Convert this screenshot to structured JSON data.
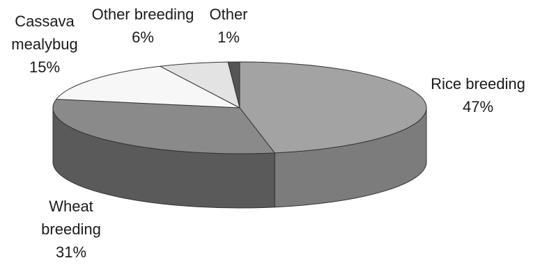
{
  "chart_data": {
    "type": "pie",
    "style": "3d",
    "slices": [
      {
        "label_lines": [
          "Rice breeding"
        ],
        "value": 47,
        "value_label": "47%",
        "color": "#a3a3a3",
        "side_color": "#7c7c7c"
      },
      {
        "label_lines": [
          "Wheat",
          "breeding"
        ],
        "value": 31,
        "value_label": "31%",
        "color": "#8a8a8a",
        "side_color": "#5a5a5a"
      },
      {
        "label_lines": [
          "Cassava",
          "mealybug"
        ],
        "value": 15,
        "value_label": "15%",
        "color": "#f7f7f7",
        "side_color": "#cfcfcf"
      },
      {
        "label_lines": [
          "Other breeding"
        ],
        "value": 6,
        "value_label": "6%",
        "color": "#e3e3e3",
        "side_color": "#bdbdbd"
      },
      {
        "label_lines": [
          "Other"
        ],
        "value": 1,
        "value_label": "1%",
        "color": "#555555",
        "side_color": "#333333"
      }
    ],
    "title": "",
    "legend": "none"
  }
}
